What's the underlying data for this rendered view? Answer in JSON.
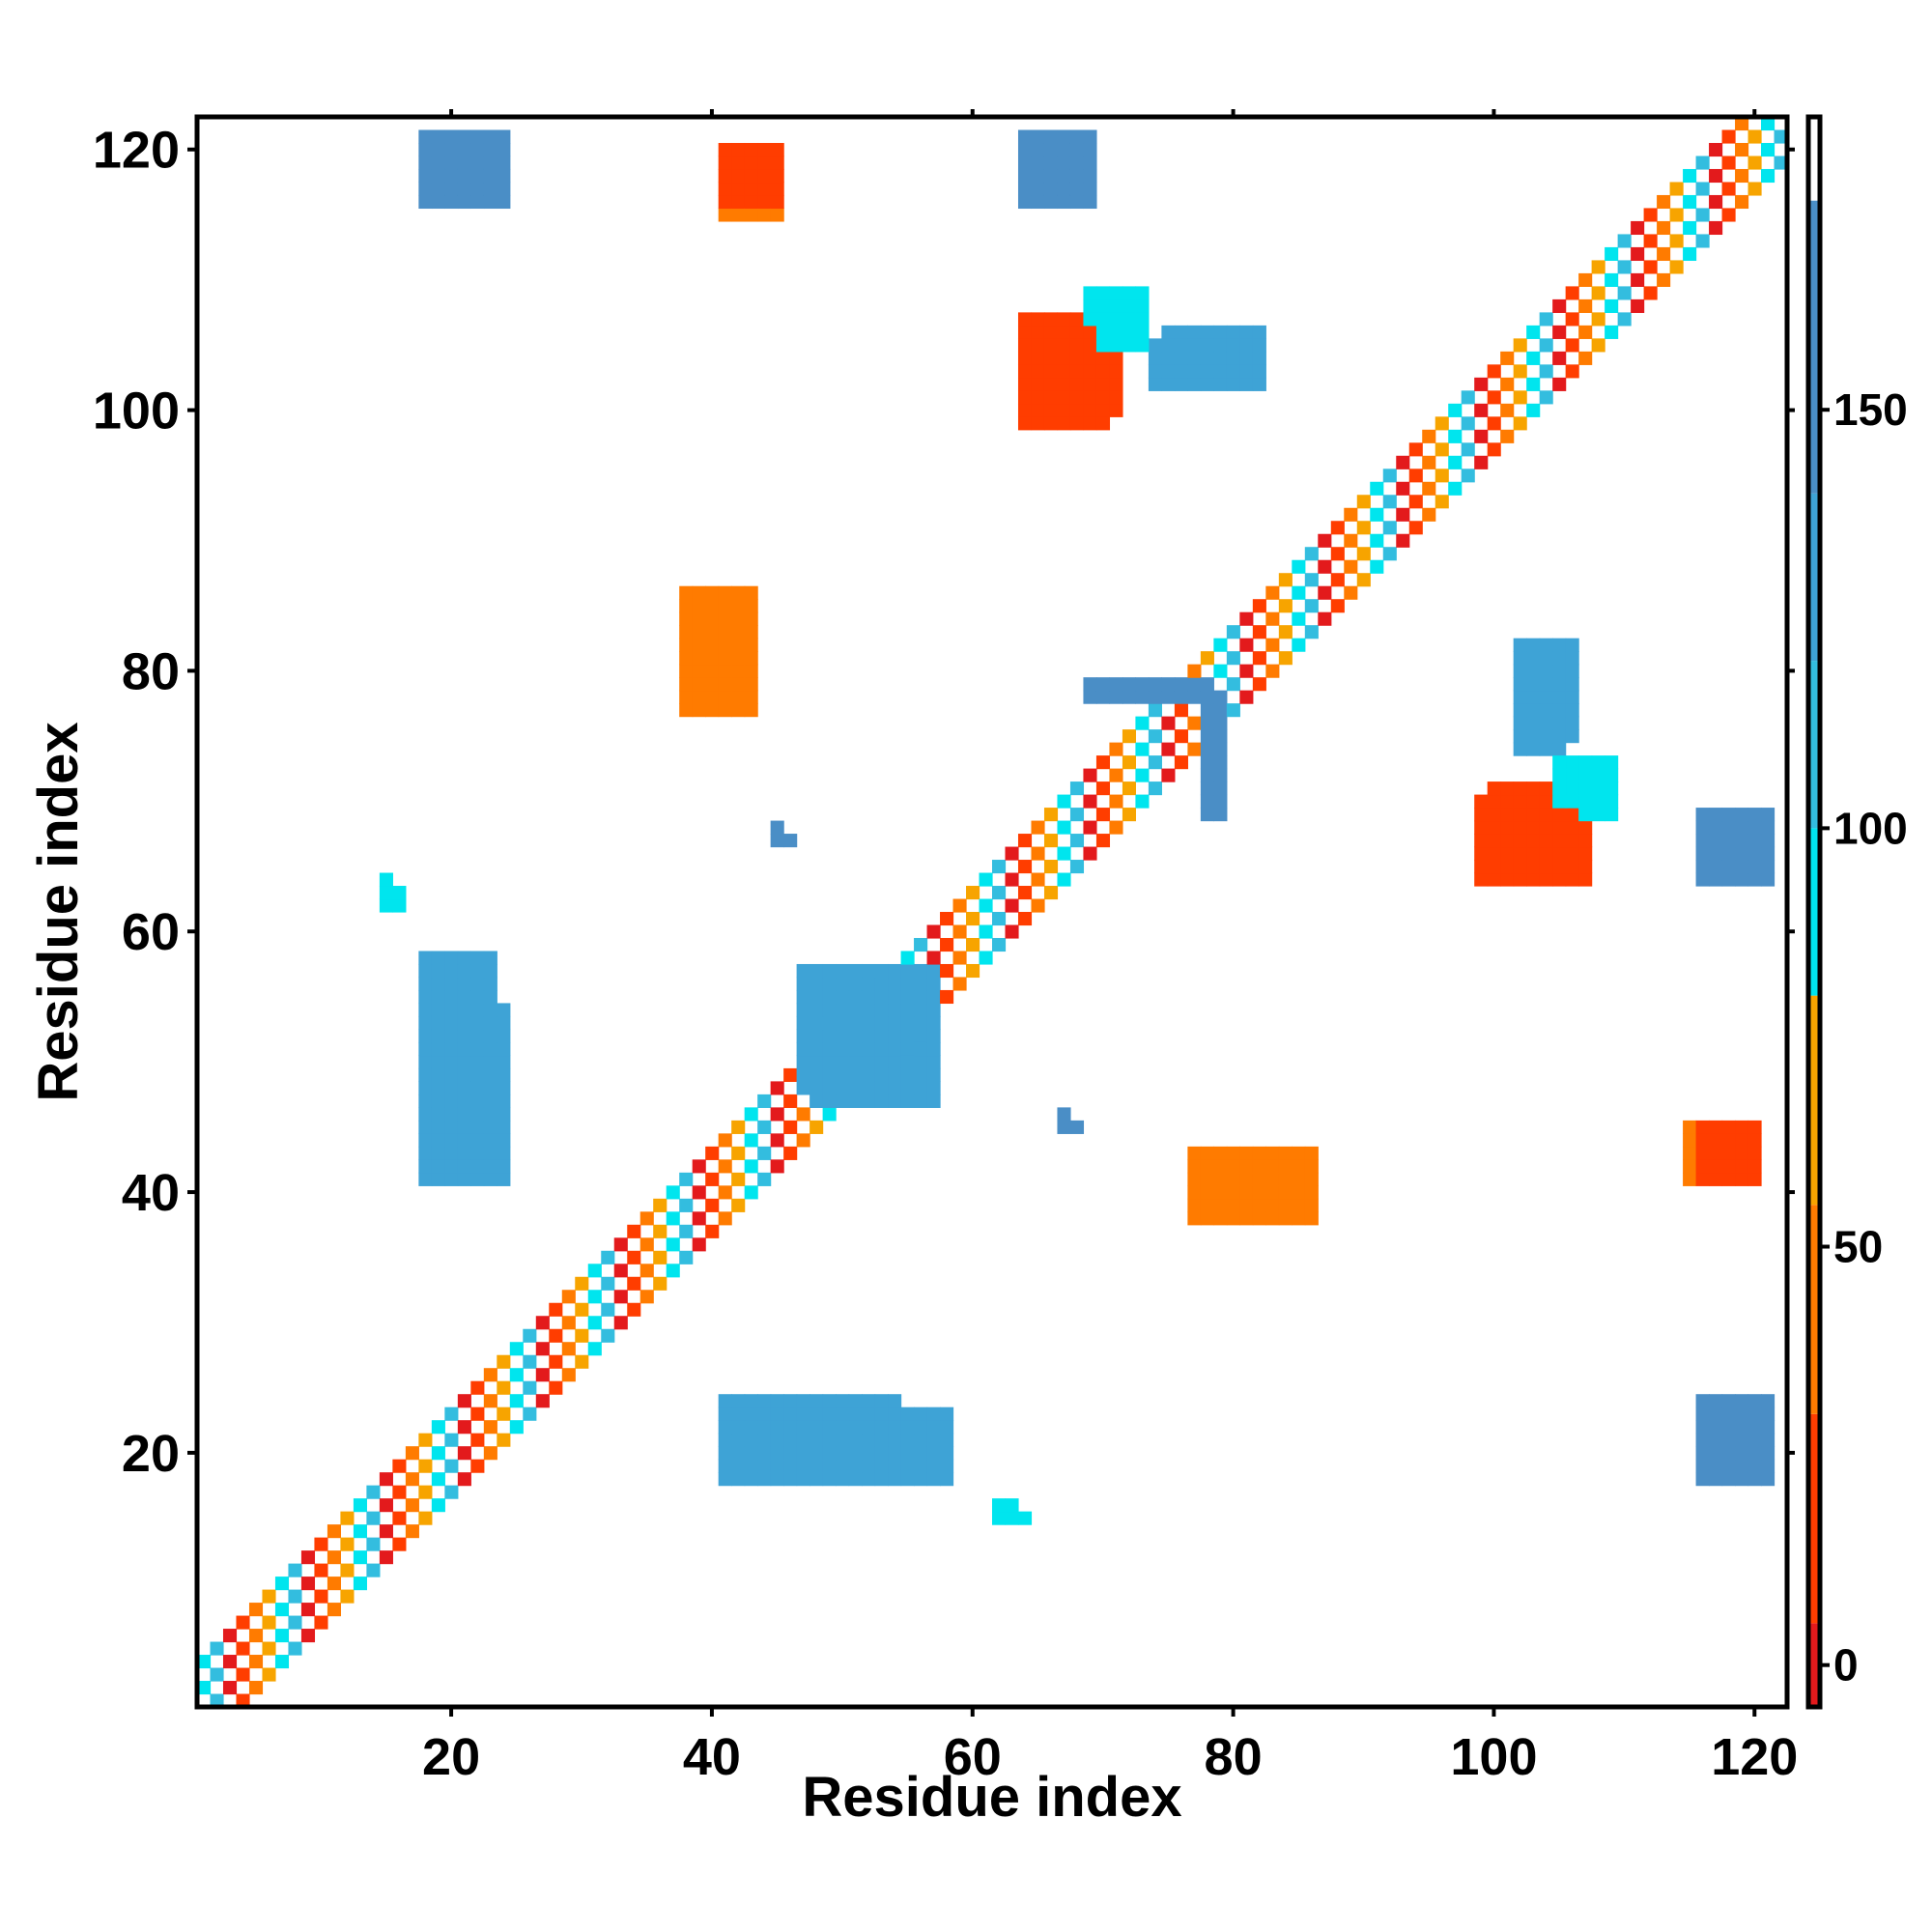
{
  "chart_data": {
    "type": "heatmap",
    "title": "",
    "xlabel": "Residue index",
    "ylabel": "Residue index",
    "xlim": [
      1,
      122
    ],
    "ylim": [
      1,
      122
    ],
    "x_ticks": [
      20,
      40,
      60,
      80,
      100,
      120
    ],
    "y_ticks": [
      20,
      40,
      60,
      80,
      100,
      120
    ],
    "matrix_symmetric": true,
    "diagonal_band": {
      "from": 1,
      "to": 122,
      "half_width": 4,
      "note_pattern": "checkerboard of color classes"
    },
    "colorbar": {
      "ticks": [
        0,
        50,
        100,
        150
      ],
      "range": [
        -5,
        185
      ],
      "scale": [
        {
          "from": -5,
          "to": 5,
          "color": "#e31a1c"
        },
        {
          "from": 5,
          "to": 30,
          "color": "#ff3d00"
        },
        {
          "from": 30,
          "to": 55,
          "color": "#ff7b00"
        },
        {
          "from": 55,
          "to": 80,
          "color": "#f7a400"
        },
        {
          "from": 80,
          "to": 100,
          "color": "#00e5ee"
        },
        {
          "from": 100,
          "to": 120,
          "color": "#33bddf"
        },
        {
          "from": 120,
          "to": 140,
          "color": "#3ea3d6"
        },
        {
          "from": 140,
          "to": 175,
          "color": "#4a8ec6"
        },
        {
          "from": 175,
          "to": 185,
          "color": "#ffffff"
        }
      ]
    },
    "contact_regions": [
      {
        "x": [
          18,
          24
        ],
        "y": [
          116,
          121
        ],
        "value": 150
      },
      {
        "x": [
          64,
          69
        ],
        "y": [
          116,
          121
        ],
        "value": 150
      },
      {
        "x": [
          41,
          45
        ],
        "y": [
          115,
          119
        ],
        "value": 40
      },
      {
        "x": [
          64,
          70
        ],
        "y": [
          99,
          107
        ],
        "value": 20
      },
      {
        "x": [
          69,
          73
        ],
        "y": [
          106,
          109
        ],
        "value": 95
      },
      {
        "x": [
          74,
          82
        ],
        "y": [
          102,
          105
        ],
        "value": 130
      },
      {
        "x": [
          38,
          43
        ],
        "y": [
          77,
          85
        ],
        "value": 50
      },
      {
        "x": [
          100,
          106
        ],
        "y": [
          64,
          71
        ],
        "value": 20
      },
      {
        "x": [
          105,
          109
        ],
        "y": [
          70,
          73
        ],
        "value": 95
      },
      {
        "x": [
          102,
          106
        ],
        "y": [
          75,
          82
        ],
        "value": 120
      },
      {
        "x": [
          116,
          121
        ],
        "y": [
          64,
          69
        ],
        "value": 150
      },
      {
        "x": [
          15,
          16
        ],
        "y": [
          62,
          63
        ],
        "value": 90
      },
      {
        "x": [
          45,
          46
        ],
        "y": [
          67,
          67
        ],
        "value": 140
      },
      {
        "x": [
          18,
          24
        ],
        "y": [
          41,
          54
        ],
        "value": 120
      },
      {
        "x": [
          47,
          57
        ],
        "y": [
          48,
          57
        ],
        "value": 130
      },
      {
        "x": [
          41,
          58
        ],
        "y": [
          18,
          23
        ],
        "value": 120
      },
      {
        "x": [
          116,
          121
        ],
        "y": [
          18,
          24
        ],
        "value": 150
      },
      {
        "x": [
          62,
          64
        ],
        "y": [
          15,
          15
        ],
        "value": 90
      },
      {
        "x": [
          77,
          86
        ],
        "y": [
          38,
          43
        ],
        "value": 45
      },
      {
        "x": [
          116,
          120
        ],
        "y": [
          41,
          45
        ],
        "value": 25
      },
      {
        "x": [
          67,
          68
        ],
        "y": [
          45,
          45
        ],
        "value": 140
      },
      {
        "x": [
          78,
          79
        ],
        "y": [
          69,
          78
        ],
        "value": 140
      }
    ]
  }
}
